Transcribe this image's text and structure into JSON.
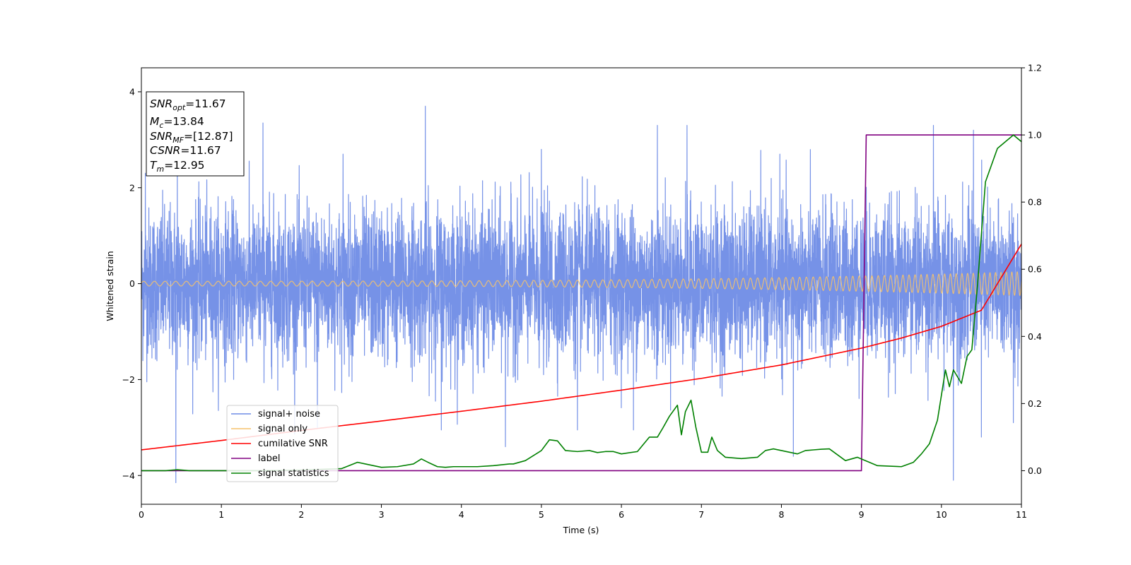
{
  "chart_data": {
    "type": "line",
    "xlabel": "Time (s)",
    "ylabel": "Whitened strain",
    "xlim": [
      0,
      11
    ],
    "ylim": [
      -4.6,
      4.5
    ],
    "y2lim": [
      -0.1,
      1.2
    ],
    "x_ticks": [
      "0",
      "1",
      "2",
      "3",
      "4",
      "5",
      "6",
      "7",
      "8",
      "9",
      "10",
      "11"
    ],
    "y_ticks": [
      "−4",
      "−2",
      "0",
      "2",
      "4"
    ],
    "y2_ticks": [
      "0.0",
      "0.2",
      "0.4",
      "0.6",
      "0.8",
      "1.0",
      "1.2"
    ],
    "colors": {
      "noise": "#6f8ce6",
      "signal": "#f5c26b",
      "csnr": "#ff0000",
      "label": "#800080",
      "stat": "#008000"
    },
    "annotation": {
      "snr_opt": {
        "sym": "SNR",
        "sub": "opt",
        "val": "=11.67"
      },
      "mc": {
        "sym": "M",
        "sub": "c",
        "val": "=13.84"
      },
      "snr_mf": {
        "sym": "SNR",
        "sub": "MF",
        "val": "=[12.87]"
      },
      "csnr": {
        "sym": "CSNR",
        "val": "=11.67"
      },
      "tm": {
        "sym": "T",
        "sub": "m",
        "val": "=12.95"
      }
    },
    "legend": [
      {
        "key": "noise",
        "label": "signal+ noise"
      },
      {
        "key": "signal",
        "label": "signal only"
      },
      {
        "key": "csnr",
        "label": "cumilative SNR"
      },
      {
        "key": "label",
        "label": "label"
      },
      {
        "key": "stat",
        "label": "signal statistics"
      }
    ],
    "series": {
      "noise": {
        "name": "signal+ noise",
        "axis": "left",
        "spikes_up": [
          [
            0.45,
            2.5
          ],
          [
            1.52,
            3.35
          ],
          [
            3.55,
            3.7
          ],
          [
            6.45,
            3.3
          ],
          [
            6.82,
            3.3
          ],
          [
            7.98,
            2.7
          ],
          [
            9.9,
            3.3
          ],
          [
            10.4,
            3.2
          ],
          [
            0.05,
            2.3
          ],
          [
            2.52,
            2.7
          ],
          [
            5.0,
            2.8
          ]
        ],
        "spikes_down": [
          [
            0.43,
            -4.15
          ],
          [
            3.75,
            -3.05
          ],
          [
            4.55,
            -3.4
          ],
          [
            5.45,
            -3.05
          ],
          [
            6.15,
            -3.05
          ],
          [
            8.15,
            -3.6
          ],
          [
            10.15,
            -4.1
          ],
          [
            10.5,
            -3.2
          ],
          [
            10.9,
            -2.9
          ],
          [
            2.2,
            -3.0
          ]
        ]
      },
      "signal": {
        "name": "signal only",
        "axis": "left",
        "amp_start": 0.05,
        "amp_end": 0.25,
        "cycles_start_per_s": 7.5,
        "cycles_end_per_s": 15
      },
      "csnr": {
        "name": "cumilative SNR",
        "axis": "right",
        "x": [
          0,
          1,
          2,
          3,
          4,
          5,
          6,
          7,
          8,
          9,
          9.5,
          10,
          10.5,
          11
        ],
        "y": [
          0.062,
          0.09,
          0.12,
          0.148,
          0.177,
          0.207,
          0.24,
          0.275,
          0.315,
          0.365,
          0.395,
          0.43,
          0.478,
          0.675
        ]
      },
      "label": {
        "name": "label",
        "axis": "right",
        "x": [
          0,
          9.0,
          9.06,
          11
        ],
        "y": [
          0.0,
          0.0,
          1.0,
          1.0
        ]
      },
      "stat": {
        "name": "signal statistics",
        "axis": "right",
        "x": [
          0,
          0.3,
          0.45,
          0.6,
          1,
          1.5,
          2,
          2.5,
          2.7,
          2.8,
          3.0,
          3.2,
          3.4,
          3.5,
          3.6,
          3.7,
          3.8,
          3.9,
          4.0,
          4.2,
          4.4,
          4.6,
          4.65,
          4.8,
          5.0,
          5.1,
          5.2,
          5.3,
          5.45,
          5.6,
          5.7,
          5.8,
          5.9,
          6.0,
          6.2,
          6.35,
          6.45,
          6.52,
          6.6,
          6.7,
          6.75,
          6.8,
          6.87,
          6.93,
          7.0,
          7.08,
          7.13,
          7.2,
          7.3,
          7.5,
          7.7,
          7.8,
          7.9,
          8.0,
          8.2,
          8.3,
          8.4,
          8.5,
          8.6,
          8.8,
          8.95,
          9.05,
          9.2,
          9.5,
          9.65,
          9.75,
          9.85,
          9.95,
          10.05,
          10.1,
          10.15,
          10.25,
          10.32,
          10.38,
          10.45,
          10.55,
          10.7,
          10.85,
          10.9,
          11.0
        ],
        "y": [
          0.0,
          0.0,
          0.003,
          0.0,
          0.0,
          0.0,
          0.002,
          0.006,
          0.025,
          0.02,
          0.01,
          0.012,
          0.02,
          0.035,
          0.023,
          0.012,
          0.01,
          0.012,
          0.012,
          0.012,
          0.015,
          0.02,
          0.02,
          0.03,
          0.06,
          0.092,
          0.089,
          0.06,
          0.057,
          0.06,
          0.054,
          0.057,
          0.057,
          0.05,
          0.057,
          0.1,
          0.1,
          0.128,
          0.162,
          0.195,
          0.107,
          0.176,
          0.21,
          0.13,
          0.055,
          0.055,
          0.1,
          0.06,
          0.04,
          0.036,
          0.04,
          0.06,
          0.065,
          0.06,
          0.05,
          0.06,
          0.062,
          0.064,
          0.065,
          0.03,
          0.04,
          0.03,
          0.015,
          0.012,
          0.025,
          0.05,
          0.08,
          0.15,
          0.3,
          0.25,
          0.3,
          0.26,
          0.34,
          0.36,
          0.55,
          0.86,
          0.96,
          0.99,
          1.0,
          0.98
        ]
      }
    }
  }
}
